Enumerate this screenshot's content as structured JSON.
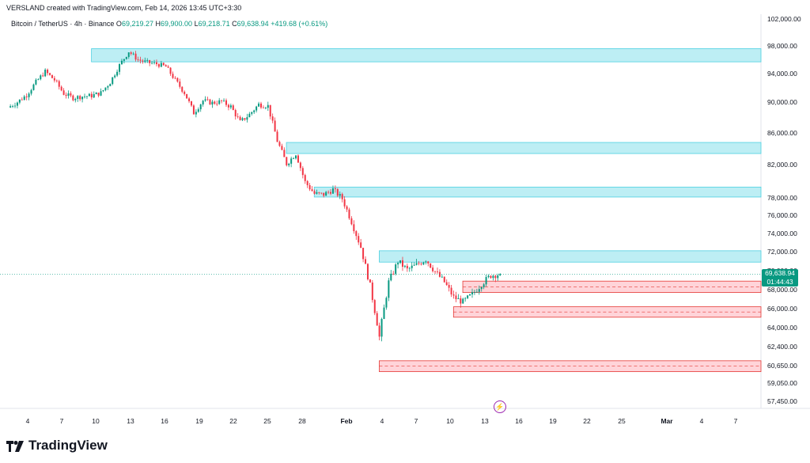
{
  "header": {
    "text": "VERSLAND created with TradingView.com, Feb 14, 2026 13:45 UTC+3:30"
  },
  "symbol": {
    "name": "Bitcoin / TetherUS · 4h · Binance",
    "o_label": "O",
    "o_value": "69,219.27",
    "h_label": "H",
    "h_value": "69,900.00",
    "l_label": "L",
    "l_value": "69,218.71",
    "c_label": "C",
    "c_value": "69,638.94",
    "change": "+419.68 (+0.61%)"
  },
  "price_badge": {
    "price": "69,638.94",
    "countdown": "01:44:43"
  },
  "footer": {
    "brand": "TradingView"
  },
  "colors": {
    "up": "#089981",
    "down": "#f23645",
    "supply": "#b2ebf2",
    "demand": "#ffcdd2"
  },
  "chart_data": {
    "type": "candlestick",
    "title": "",
    "xlabel": "",
    "ylabel": "",
    "ylim": [
      56000,
      102000
    ],
    "grid": false,
    "x_ticks": [
      "4",
      "7",
      "10",
      "13",
      "16",
      "19",
      "22",
      "25",
      "28",
      "Feb",
      "4",
      "7",
      "10",
      "13",
      "16",
      "19",
      "22",
      "25",
      "Mar",
      "4",
      "7"
    ],
    "y_ticks": [
      "102,000.00",
      "98,000.00",
      "94,000.00",
      "90,000.00",
      "86,000.00",
      "82,000.00",
      "78,000.00",
      "76,000.00",
      "74,000.00",
      "72,000.00",
      "70,000.00",
      "68,000.00",
      "66,000.00",
      "64,000.00",
      "62,400.00",
      "60,650.00",
      "59,050.00",
      "57,450.00"
    ],
    "y_tick_values": [
      102000,
      98000,
      94000,
      90000,
      86000,
      82000,
      78000,
      76000,
      74000,
      72000,
      70000,
      68000,
      66000,
      64000,
      62400,
      60650,
      59050,
      57450
    ],
    "last_price": 69638.94,
    "close_path": [
      [
        0,
        89300
      ],
      [
        1,
        90000
      ],
      [
        2,
        91000
      ],
      [
        3,
        92800
      ],
      [
        4,
        94300
      ],
      [
        5,
        93100
      ],
      [
        6,
        91200
      ],
      [
        7,
        90600
      ],
      [
        8,
        90800
      ],
      [
        9,
        90900
      ],
      [
        10,
        91300
      ],
      [
        11,
        92800
      ],
      [
        12,
        95200
      ],
      [
        13,
        97200
      ],
      [
        14,
        96000
      ],
      [
        15,
        95600
      ],
      [
        16,
        95400
      ],
      [
        17,
        95000
      ],
      [
        18,
        93100
      ],
      [
        19,
        91300
      ],
      [
        20,
        88600
      ],
      [
        21,
        90200
      ],
      [
        22,
        89900
      ],
      [
        23,
        90100
      ],
      [
        24,
        89400
      ],
      [
        25,
        87400
      ],
      [
        26,
        88400
      ],
      [
        27,
        89700
      ],
      [
        28,
        89500
      ],
      [
        29,
        85000
      ],
      [
        30,
        82100
      ],
      [
        31,
        83400
      ],
      [
        32,
        79900
      ],
      [
        33,
        78500
      ],
      [
        34,
        78400
      ],
      [
        35,
        79000
      ],
      [
        36,
        77900
      ],
      [
        37,
        75300
      ],
      [
        38,
        72500
      ],
      [
        39,
        68400
      ],
      [
        40,
        63200
      ],
      [
        41,
        68800
      ],
      [
        42,
        71000
      ],
      [
        43,
        70100
      ],
      [
        44,
        70600
      ],
      [
        45,
        71200
      ],
      [
        46,
        69900
      ],
      [
        47,
        68800
      ],
      [
        48,
        67200
      ],
      [
        49,
        66700
      ],
      [
        50,
        67500
      ],
      [
        51,
        68600
      ],
      [
        52,
        69500
      ],
      [
        53,
        69639
      ]
    ],
    "zones": [
      {
        "kind": "supply",
        "from_x": 9,
        "to_x": "end",
        "low": 95700,
        "high": 97600
      },
      {
        "kind": "supply",
        "from_x": 30,
        "to_x": "end",
        "low": 83400,
        "high": 84800
      },
      {
        "kind": "supply",
        "from_x": 33,
        "to_x": "end",
        "low": 78100,
        "high": 79300
      },
      {
        "kind": "supply",
        "from_x": 40,
        "to_x": "end",
        "low": 70900,
        "high": 72100
      },
      {
        "kind": "demand",
        "from_x": 49,
        "to_x": "end",
        "low": 67700,
        "high": 68900
      },
      {
        "kind": "demand",
        "from_x": 48,
        "to_x": "end",
        "low": 65100,
        "high": 66200
      },
      {
        "kind": "demand",
        "from_x": 40,
        "to_x": "end",
        "low": 60100,
        "high": 61100
      }
    ]
  }
}
